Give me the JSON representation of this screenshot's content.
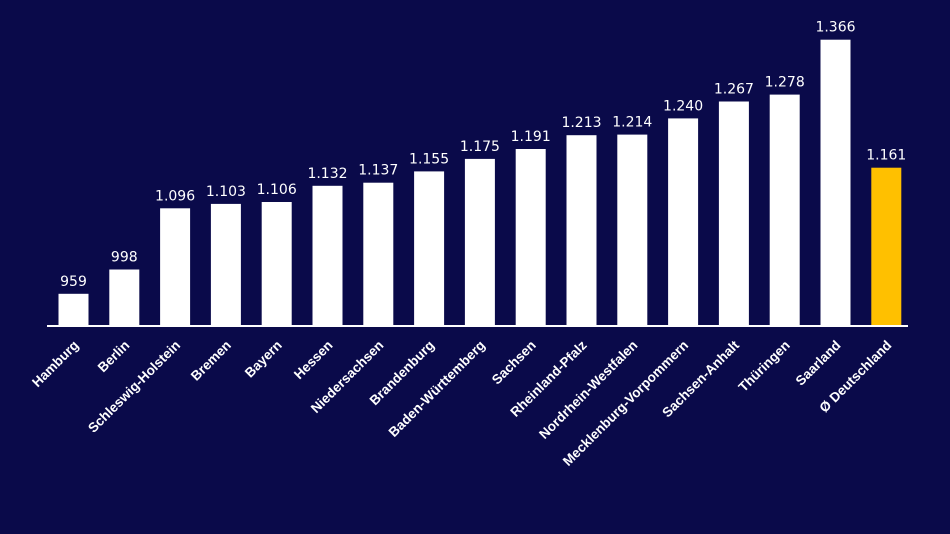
{
  "chart_data": {
    "type": "bar",
    "categories": [
      "Hamburg",
      "Berlin",
      "Schleswig-Holstein",
      "Bremen",
      "Bayern",
      "Hessen",
      "Niedersachsen",
      "Brandenburg",
      "Baden-Württemberg",
      "Sachsen",
      "Rheinland-Pfalz",
      "Nordrhein-Westfalen",
      "Mecklenburg-Vorpommern",
      "Sachsen-Anhalt",
      "Thüringen",
      "Saarland",
      "Ø Deutschland"
    ],
    "values": [
      959,
      998,
      1096,
      1103,
      1106,
      1132,
      1137,
      1155,
      1175,
      1191,
      1213,
      1214,
      1240,
      1267,
      1278,
      1366,
      1161
    ],
    "value_labels": [
      "959",
      "998",
      "1.096",
      "1.103",
      "1.106",
      "1.132",
      "1.137",
      "1.155",
      "1.175",
      "1.191",
      "1.213",
      "1.214",
      "1.240",
      "1.267",
      "1.278",
      "1.366",
      "1.161"
    ],
    "highlight_index": 16,
    "title": "",
    "xlabel": "",
    "ylabel": "",
    "ylim": [
      920,
      1380
    ],
    "grid": false,
    "legend": "none",
    "colors": {
      "background": "#0a0a4a",
      "bar": "#ffffff",
      "highlight": "#ffc000",
      "text": "#ffffff",
      "axis": "#ffffff"
    }
  }
}
